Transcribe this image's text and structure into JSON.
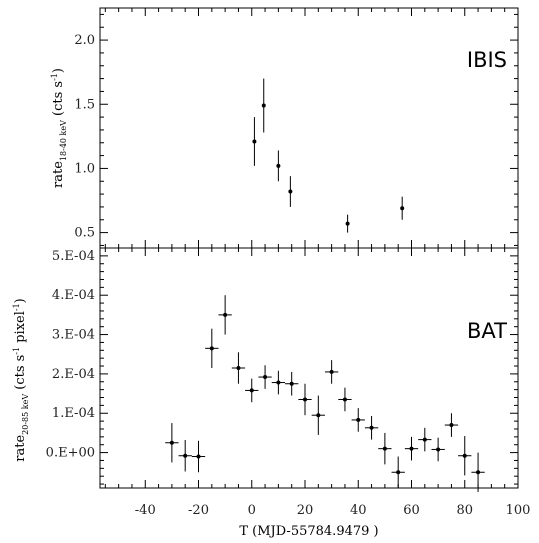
{
  "chart_data": [
    {
      "type": "scatter",
      "panel_label": "IBIS",
      "ylabel": {
        "main": "rate",
        "sub": "18-40 keV",
        "unit_open": " (cts s",
        "unit_sup": "-1",
        "unit_close": ")"
      },
      "xlim": [
        -57,
        100
      ],
      "ylim": [
        0.38,
        2.25
      ],
      "yticks": [
        {
          "value": 0.5,
          "label": "0.5"
        },
        {
          "value": 1.0,
          "label": "1.0"
        },
        {
          "value": 1.5,
          "label": "1.5"
        },
        {
          "value": 2.0,
          "label": "2.0"
        }
      ],
      "points": [
        {
          "x": 1,
          "y": 1.21,
          "yerr": 0.19,
          "xerr": 0
        },
        {
          "x": 4.5,
          "y": 1.49,
          "yerr": 0.21,
          "xerr": 0
        },
        {
          "x": 10,
          "y": 1.02,
          "yerr": 0.12,
          "xerr": 0
        },
        {
          "x": 14.5,
          "y": 0.82,
          "yerr": 0.12,
          "xerr": 0
        },
        {
          "x": 36,
          "y": 0.57,
          "yerr": 0.07,
          "xerr": 0
        },
        {
          "x": 56.5,
          "y": 0.69,
          "yerr": 0.09,
          "xerr": 0
        }
      ]
    },
    {
      "type": "scatter",
      "panel_label": "BAT",
      "ylabel": {
        "main": "rate",
        "sub": "20-85 keV",
        "unit_open": " (cts s",
        "unit_sup": "-1",
        "unit_mid": " pixel",
        "unit_sup2": "-1",
        "unit_close": ")"
      },
      "xlabel": "T (MJD-55784.9479 )",
      "xlim": [
        -57,
        100
      ],
      "ylim": [
        -9e-05,
        0.00052
      ],
      "yticks": [
        {
          "value": 0.0,
          "label": "0.E+00"
        },
        {
          "value": 0.0001,
          "label": "1.E-04"
        },
        {
          "value": 0.0002,
          "label": "2.E-04"
        },
        {
          "value": 0.0003,
          "label": "3.E-04"
        },
        {
          "value": 0.0004,
          "label": "4.E-04"
        },
        {
          "value": 0.0005,
          "label": "5.E-04"
        }
      ],
      "xticks": [
        {
          "value": -40,
          "label": "-40"
        },
        {
          "value": -20,
          "label": "-20"
        },
        {
          "value": 0,
          "label": "0"
        },
        {
          "value": 20,
          "label": "20"
        },
        {
          "value": 40,
          "label": "40"
        },
        {
          "value": 60,
          "label": "60"
        },
        {
          "value": 80,
          "label": "80"
        },
        {
          "value": 100,
          "label": "100"
        }
      ],
      "points": [
        {
          "x": -30,
          "y": 2.5e-05,
          "yerr": 5e-05,
          "xerr": 2.5
        },
        {
          "x": -25,
          "y": -8e-06,
          "yerr": 4e-05,
          "xerr": 2.5
        },
        {
          "x": -20,
          "y": -1e-05,
          "yerr": 4e-05,
          "xerr": 2.5
        },
        {
          "x": -15,
          "y": 0.000265,
          "yerr": 5e-05,
          "xerr": 2.5
        },
        {
          "x": -10,
          "y": 0.00035,
          "yerr": 5e-05,
          "xerr": 2.5
        },
        {
          "x": -5,
          "y": 0.000215,
          "yerr": 4e-05,
          "xerr": 2.5
        },
        {
          "x": 0,
          "y": 0.000158,
          "yerr": 3e-05,
          "xerr": 2.5
        },
        {
          "x": 5,
          "y": 0.000192,
          "yerr": 3e-05,
          "xerr": 2.5
        },
        {
          "x": 10,
          "y": 0.000178,
          "yerr": 3e-05,
          "xerr": 2.5
        },
        {
          "x": 15,
          "y": 0.000175,
          "yerr": 3e-05,
          "xerr": 2.5
        },
        {
          "x": 20,
          "y": 0.000135,
          "yerr": 4e-05,
          "xerr": 2.5
        },
        {
          "x": 25,
          "y": 9.5e-05,
          "yerr": 5e-05,
          "xerr": 2.5
        },
        {
          "x": 30,
          "y": 0.000205,
          "yerr": 3e-05,
          "xerr": 2.5
        },
        {
          "x": 35,
          "y": 0.000135,
          "yerr": 3e-05,
          "xerr": 2.5
        },
        {
          "x": 40,
          "y": 8.3e-05,
          "yerr": 3e-05,
          "xerr": 2.5
        },
        {
          "x": 45,
          "y": 6.3e-05,
          "yerr": 3e-05,
          "xerr": 2.5
        },
        {
          "x": 50,
          "y": 1e-05,
          "yerr": 4e-05,
          "xerr": 2.5
        },
        {
          "x": 55,
          "y": -5e-05,
          "yerr": 4e-05,
          "xerr": 2.5
        },
        {
          "x": 60,
          "y": 1e-05,
          "yerr": 3e-05,
          "xerr": 2.5
        },
        {
          "x": 65,
          "y": 3.3e-05,
          "yerr": 3e-05,
          "xerr": 2.5
        },
        {
          "x": 70,
          "y": 8e-06,
          "yerr": 3e-05,
          "xerr": 2.5
        },
        {
          "x": 75,
          "y": 7e-05,
          "yerr": 3e-05,
          "xerr": 2.5
        },
        {
          "x": 80,
          "y": -8e-06,
          "yerr": 5e-05,
          "xerr": 2.5
        },
        {
          "x": 85,
          "y": -5e-05,
          "yerr": 5e-05,
          "xerr": 2.5
        }
      ]
    }
  ]
}
